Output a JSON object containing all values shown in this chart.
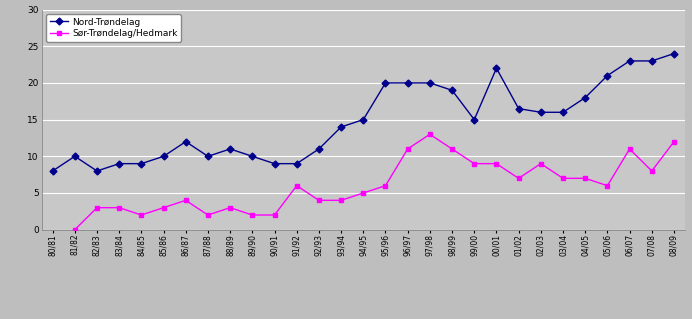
{
  "labels": [
    "80/81",
    "81/82",
    "82/83",
    "83/84",
    "84/85",
    "85/86",
    "86/87",
    "87/88",
    "88/89",
    "89/90",
    "90/91",
    "91/92",
    "92/93",
    "93/94",
    "94/95",
    "95/96",
    "96/97",
    "97/98",
    "98/99",
    "99/00",
    "00/01",
    "01/02",
    "02/03",
    "03/04",
    "04/05",
    "05/06",
    "06/07",
    "07/08",
    "08/09"
  ],
  "nord_troendelag": [
    8,
    10,
    8,
    9,
    9,
    10,
    12,
    10,
    11,
    10,
    9,
    9,
    11,
    14,
    15,
    20,
    20,
    20,
    19,
    15,
    22,
    16.5,
    16,
    16,
    18,
    21,
    23,
    23,
    24
  ],
  "sor_troendelag": [
    null,
    0,
    3,
    3,
    2,
    3,
    4,
    2,
    3,
    2,
    2,
    6,
    4,
    4,
    5,
    6,
    11,
    13,
    11,
    9,
    9,
    7,
    9,
    7,
    7,
    6,
    11,
    8,
    12
  ],
  "nord_color": "#00008B",
  "sor_color": "#FF00FF",
  "background_color": "#BEBEBE",
  "plot_bg_color": "#C8C8C8",
  "legend_nord": "Nord-Trøndelag",
  "legend_sor": "Sør-Trøndelag/Hedmark",
  "ylim": [
    0,
    30
  ],
  "yticks": [
    0,
    5,
    10,
    15,
    20,
    25,
    30
  ]
}
